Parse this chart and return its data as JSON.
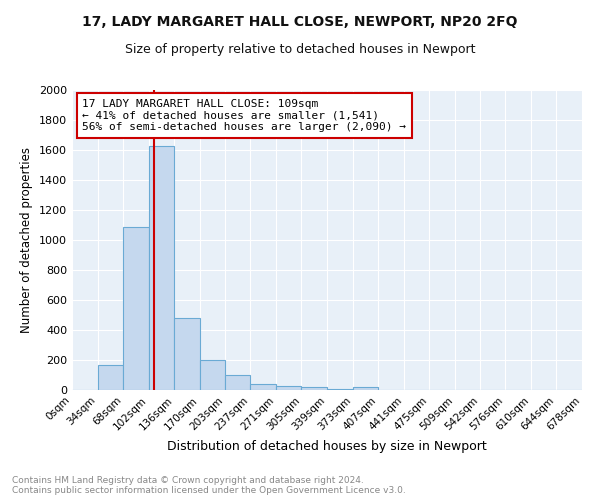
{
  "title": "17, LADY MARGARET HALL CLOSE, NEWPORT, NP20 2FQ",
  "subtitle": "Size of property relative to detached houses in Newport",
  "xlabel": "Distribution of detached houses by size in Newport",
  "ylabel": "Number of detached properties",
  "bar_color": "#c5d8ee",
  "bar_edge_color": "#6aaad4",
  "background_color": "#e8f0f8",
  "bins": [
    "0sqm",
    "34sqm",
    "68sqm",
    "102sqm",
    "136sqm",
    "170sqm",
    "203sqm",
    "237sqm",
    "271sqm",
    "305sqm",
    "339sqm",
    "373sqm",
    "407sqm",
    "441sqm",
    "475sqm",
    "509sqm",
    "542sqm",
    "576sqm",
    "610sqm",
    "644sqm",
    "678sqm"
  ],
  "values": [
    0,
    165,
    1090,
    1630,
    480,
    200,
    100,
    40,
    28,
    18,
    10,
    18,
    0,
    0,
    0,
    0,
    0,
    0,
    0,
    0
  ],
  "bin_edges": [
    0,
    34,
    68,
    102,
    136,
    170,
    203,
    237,
    271,
    305,
    339,
    373,
    407,
    441,
    475,
    509,
    542,
    576,
    610,
    644,
    678
  ],
  "property_size": 109,
  "property_line_color": "#cc0000",
  "ylim": [
    0,
    2000
  ],
  "yticks": [
    0,
    200,
    400,
    600,
    800,
    1000,
    1200,
    1400,
    1600,
    1800,
    2000
  ],
  "annotation_line1": "17 LADY MARGARET HALL CLOSE: 109sqm",
  "annotation_line2": "← 41% of detached houses are smaller (1,541)",
  "annotation_line3": "56% of semi-detached houses are larger (2,090) →",
  "annotation_box_color": "#ffffff",
  "annotation_box_edge": "#cc0000",
  "footer_text": "Contains HM Land Registry data © Crown copyright and database right 2024.\nContains public sector information licensed under the Open Government Licence v3.0.",
  "grid_color": "#ffffff",
  "fig_bg": "#ffffff",
  "title_fontsize": 10,
  "subtitle_fontsize": 9
}
